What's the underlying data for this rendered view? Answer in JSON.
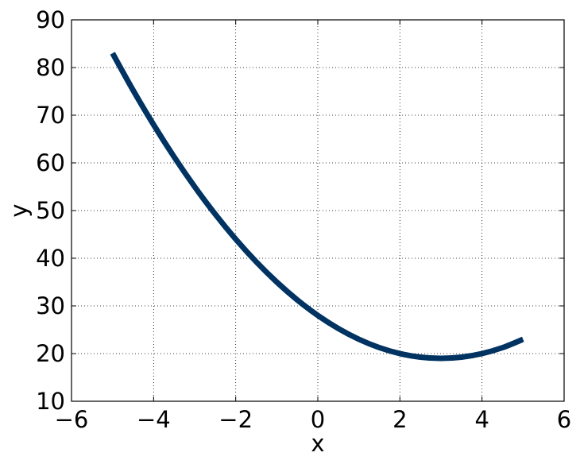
{
  "chart_data": {
    "type": "line",
    "title": "",
    "xlabel": "x",
    "ylabel": "y",
    "xlim": [
      -6,
      6
    ],
    "ylim": [
      10,
      90
    ],
    "xticks": [
      -6,
      -4,
      -2,
      0,
      2,
      4,
      6
    ],
    "xtick_labels": [
      "−6",
      "−4",
      "−2",
      "0",
      "2",
      "4",
      "6"
    ],
    "yticks": [
      10,
      20,
      30,
      40,
      50,
      60,
      70,
      80,
      90
    ],
    "ytick_labels": [
      "10",
      "20",
      "30",
      "40",
      "50",
      "60",
      "70",
      "80",
      "90"
    ],
    "grid": true,
    "series": [
      {
        "color": "#003362",
        "x": [
          -5,
          -4.5,
          -4,
          -3.5,
          -3,
          -2.5,
          -2,
          -1.5,
          -1,
          -0.5,
          0,
          0.5,
          1,
          1.5,
          2,
          2.5,
          3,
          3.5,
          4,
          4.5,
          5
        ],
        "y": [
          83,
          75.25,
          68,
          61.25,
          55,
          49.25,
          44,
          39.25,
          35,
          31.25,
          28,
          25.25,
          23,
          21.25,
          20,
          19.25,
          19,
          19.25,
          20,
          21.25,
          23
        ]
      }
    ]
  }
}
